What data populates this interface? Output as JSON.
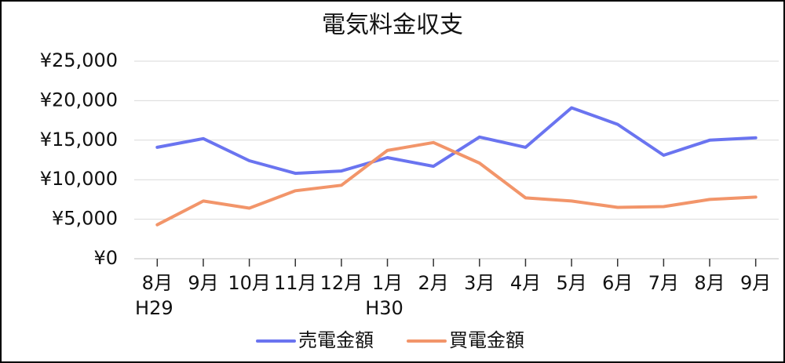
{
  "chart_data": {
    "type": "line",
    "title": "電気料金収支",
    "categories": [
      "8月",
      "9月",
      "10月",
      "11月",
      "12月",
      "1月",
      "2月",
      "3月",
      "4月",
      "5月",
      "6月",
      "7月",
      "8月",
      "9月"
    ],
    "category_sublabels": [
      "H29",
      null,
      null,
      null,
      null,
      "H30",
      null,
      null,
      null,
      null,
      null,
      null,
      null,
      null
    ],
    "series": [
      {
        "name": "売電金額",
        "color": "#6a74f0",
        "values": [
          14100,
          15200,
          12400,
          10800,
          11100,
          12800,
          11700,
          15400,
          14100,
          19100,
          17000,
          13100,
          15000,
          15300
        ]
      },
      {
        "name": "買電金額",
        "color": "#f2956a",
        "values": [
          4300,
          7300,
          6400,
          8600,
          9300,
          13700,
          14700,
          12100,
          7700,
          7300,
          6500,
          6600,
          7500,
          7800
        ]
      }
    ],
    "ylim": [
      0,
      25000
    ],
    "yticks": [
      {
        "value": 0,
        "label": "¥0"
      },
      {
        "value": 5000,
        "label": "¥5,000"
      },
      {
        "value": 10000,
        "label": "¥10,000"
      },
      {
        "value": 15000,
        "label": "¥15,000"
      },
      {
        "value": 20000,
        "label": "¥20,000"
      },
      {
        "value": 25000,
        "label": "¥25,000"
      }
    ],
    "grid": true,
    "legend": "bottom"
  }
}
